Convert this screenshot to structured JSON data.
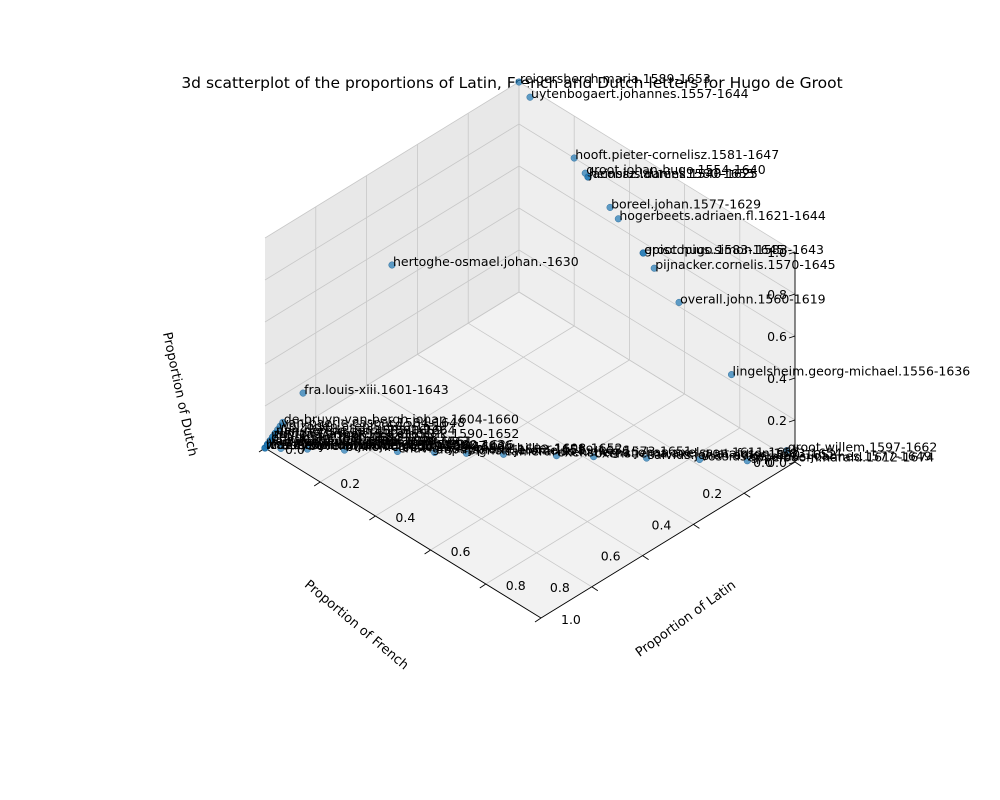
{
  "chart_data": {
    "type": "scatter",
    "projection": "3d",
    "title": "3d scatterplot of the proportions of Latin, French and Dutch letters for Hugo de Groot",
    "xlabel": "Proportion of Latin",
    "ylabel": "Proportion of French",
    "zlabel": "Proportion of Dutch",
    "xlim": [
      0,
      1
    ],
    "ylim": [
      0,
      1
    ],
    "zlim": [
      0,
      1
    ],
    "xticks": [
      "0.0",
      "0.2",
      "0.4",
      "0.6",
      "0.8",
      "1.0"
    ],
    "yticks": [
      "0.0",
      "0.2",
      "0.4",
      "0.6",
      "0.8"
    ],
    "zticks": [
      "0.0",
      "0.2",
      "0.4",
      "0.6",
      "0.8",
      "1.0"
    ],
    "grid": true,
    "marker_color": "#1f77b4",
    "points": [
      {
        "label": "reigersberch.maria.1589-1653",
        "latin": 0.0,
        "french": 0.0,
        "dutch": 1.0
      },
      {
        "label": "uytenbogaert.johannes.1557-1644",
        "latin": 0.04,
        "french": 0.0,
        "dutch": 0.96
      },
      {
        "label": "hooft.pieter-cornelisz.1581-1647",
        "latin": 0.2,
        "french": 0.0,
        "dutch": 0.8
      },
      {
        "label": "groot.johan-hugo.1554-1640",
        "latin": 0.24,
        "french": 0.0,
        "dutch": 0.76
      },
      {
        "label": "heinsius.daniel.1580-1655",
        "latin": 0.25,
        "french": 0.0,
        "dutch": 0.75
      },
      {
        "label": "jacobsz.laurens.1540-1625",
        "latin": 0.25,
        "french": 0.0,
        "dutch": 0.75
      },
      {
        "label": "boreel.johan.1577-1629",
        "latin": 0.33,
        "french": 0.0,
        "dutch": 0.67
      },
      {
        "label": "hogerbeets.adriaen.fl.1621-1644",
        "latin": 0.36,
        "french": 0.0,
        "dutch": 0.64
      },
      {
        "label": "groot.hugo.1583-1645",
        "latin": 0.45,
        "french": 0.0,
        "dutch": 0.55
      },
      {
        "label": "episcopius.simon.1583-1643",
        "latin": 0.45,
        "french": 0.0,
        "dutch": 0.55
      },
      {
        "label": "pijnacker.cornelis.1570-1645",
        "latin": 0.49,
        "french": 0.0,
        "dutch": 0.51
      },
      {
        "label": "overall.john.1560-1619",
        "latin": 0.58,
        "french": 0.0,
        "dutch": 0.42
      },
      {
        "label": "lingelsheim.georg-michael.1556-1636",
        "latin": 0.77,
        "french": 0.0,
        "dutch": 0.23
      },
      {
        "label": "groot.willem.1597-1662",
        "latin": 0.97,
        "french": 0.0,
        "dutch": 0.03
      },
      {
        "label": "appelboom.harald.1612-1674",
        "latin": 0.91,
        "french": 0.09,
        "dutch": 0.0
      },
      {
        "label": "vossius.gerardus-joannes.1577-1649",
        "latin": 0.82,
        "french": 0.18,
        "dutch": 0.0
      },
      {
        "label": "salvius.johan-adler.1590-1652",
        "latin": 0.72,
        "french": 0.28,
        "dutch": 0.0
      },
      {
        "label": "oxenstierna.axel-gustafsson.1583-1654",
        "latin": 0.62,
        "french": 0.38,
        "dutch": 0.0
      },
      {
        "label": "oxenstierna.johan-axelsson.1611-1657",
        "latin": 0.55,
        "french": 0.45,
        "dutch": 0.0
      },
      {
        "label": "camerarius.ludwig.1573-1651",
        "latin": 0.45,
        "french": 0.55,
        "dutch": 0.0
      },
      {
        "label": "bignon.jerome.1589-1656",
        "latin": 0.38,
        "french": 0.62,
        "dutch": 0.0
      },
      {
        "label": "dupuy.pierre.1582-1651",
        "latin": 0.32,
        "french": 0.68,
        "dutch": 0.0
      },
      {
        "label": "chavigny.leon-bouthillier.1608-1652",
        "latin": 0.25,
        "french": 0.75,
        "dutch": 0.0
      },
      {
        "label": "bullion.claude.1569-1640",
        "latin": 0.15,
        "french": 0.85,
        "dutch": 0.0
      },
      {
        "label": "beverwijck.johan.1594-1647",
        "latin": 0.08,
        "french": 0.92,
        "dutch": 0.0
      },
      {
        "label": "hertoghe-osmael.johan.-1630",
        "latin": 0.0,
        "french": 0.5,
        "dutch": 0.5
      },
      {
        "label": "fra.louis-xiii.1601-1643",
        "latin": 0.0,
        "french": 0.85,
        "dutch": 0.15
      },
      {
        "label": "aubery-maurier.benjamin.1566-1636",
        "latin": 0.03,
        "french": 0.97,
        "dutch": 0.0
      },
      {
        "label": "beaumont.jean.1584-1658",
        "latin": 0.0,
        "french": 0.98,
        "dutch": 0.02
      },
      {
        "label": "wassenaer-duvenvoorde.jan.1580-1626",
        "latin": 0.0,
        "french": 1.0,
        "dutch": 0.0
      },
      {
        "label": "den-hertog.gerrit.1590-1664",
        "latin": 0.0,
        "french": 0.96,
        "dutch": 0.04
      },
      {
        "label": "wulfen.maurits.1580-1639",
        "latin": 0.0,
        "french": 0.99,
        "dutch": 0.01
      },
      {
        "label": "zuylen-van-nyevelt.diederik.1590-1652",
        "latin": 0.0,
        "french": 0.97,
        "dutch": 0.03
      },
      {
        "label": "wolzogen.arent.1600-1659",
        "latin": 0.0,
        "french": 0.95,
        "dutch": 0.05
      },
      {
        "label": "de-bruyn-van-bergh.johan.1604-1660",
        "latin": 0.0,
        "french": 0.93,
        "dutch": 0.07
      },
      {
        "label": "lenheyzen.leonard.1596-1650",
        "latin": 0.0,
        "french": 1.0,
        "dutch": 0.0
      },
      {
        "label": "duyck.jan.1590-1643",
        "latin": 0.0,
        "french": 0.98,
        "dutch": 0.02
      },
      {
        "label": "van-rheede.jan.1595-1659",
        "latin": 0.0,
        "french": 0.96,
        "dutch": 0.04
      },
      {
        "label": "nidek.cornelis.1600-1658",
        "latin": 0.0,
        "french": 1.0,
        "dutch": 0.0
      },
      {
        "label": "van-oosterwijk.johan.1600-1661",
        "latin": 0.0,
        "french": 0.99,
        "dutch": 0.01
      },
      {
        "label": "rantzau.jasper.1590-1650",
        "latin": 0.0,
        "french": 0.97,
        "dutch": 0.03
      },
      {
        "label": "van-baerle.caspar.1584-1648",
        "latin": 0.0,
        "french": 0.94,
        "dutch": 0.06
      },
      {
        "label": "van-wassenaer.johan.1600-1661",
        "latin": 0.0,
        "french": 0.99,
        "dutch": 0.01
      },
      {
        "label": "van-der-wolff.dirck.1618-1661",
        "latin": 0.0,
        "french": 0.99,
        "dutch": 0.01
      }
    ]
  }
}
